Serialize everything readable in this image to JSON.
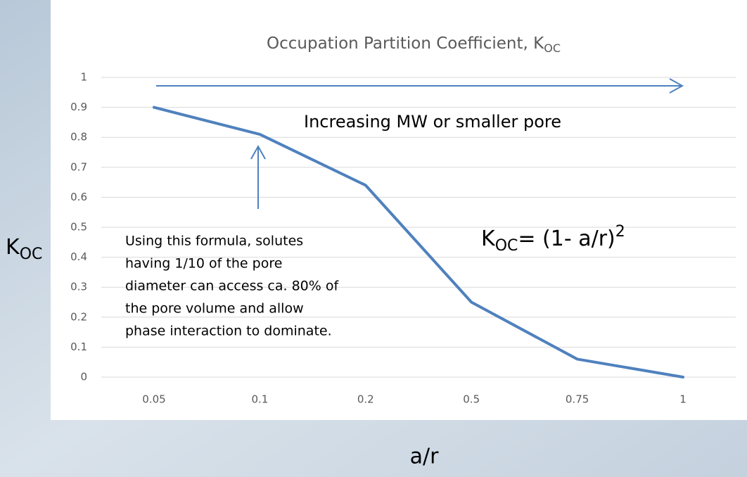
{
  "chart_data": {
    "type": "line",
    "title": "Occupation Partition Coefficient, K",
    "title_subscript": "OC",
    "y_label": "K",
    "y_label_subscript": "OC",
    "x_label": "a/r",
    "categories": [
      "0.05",
      "0.1",
      "0.2",
      "0.5",
      "0.75",
      "1"
    ],
    "values": [
      0.9,
      0.81,
      0.64,
      0.25,
      0.06,
      0
    ],
    "color": "#4f81bd",
    "ylim": [
      0,
      1
    ],
    "yticks": [
      0,
      0.1,
      0.2,
      0.3,
      0.4,
      0.5,
      0.6,
      0.7,
      0.8,
      0.9,
      1
    ],
    "grid": true,
    "arrow_label": "Increasing MW or smaller pore",
    "formula": {
      "base": "K",
      "subscript": "OC",
      "body": "= (1- a/r)",
      "superscript": "2"
    },
    "note_lines": [
      "Using this formula, solutes",
      "having 1/10 of the pore",
      "diameter can access ca. 80% of",
      "the pore volume and allow",
      "phase interaction to dominate."
    ]
  }
}
